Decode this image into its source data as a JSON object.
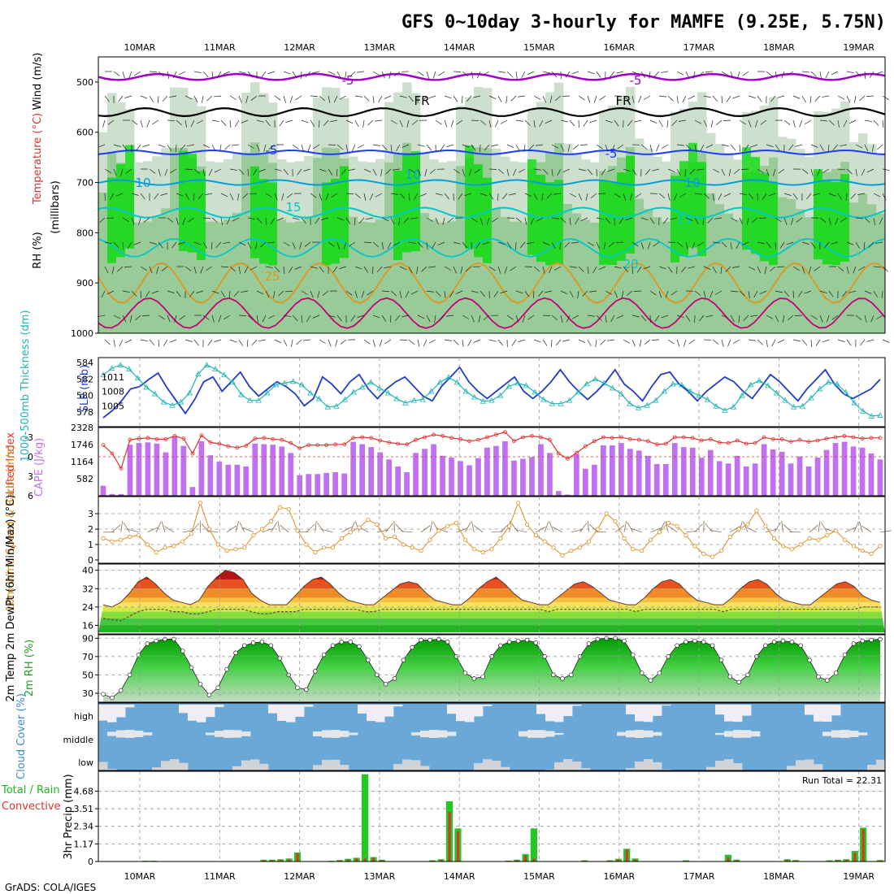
{
  "title": "GFS 0~10day 3-hourly for MAMFE (9.25E, 5.75N)",
  "footer": "GrADS: COLA/IGES",
  "colors": {
    "rh_green": "#00dc00",
    "temp_purple": "#a000c8",
    "temp_blue": "#1e3cff",
    "temp_cyan": "#00a0dc",
    "temp_teal": "#00c8c8",
    "temp_orange": "#e0961e",
    "temp_magenta": "#c8007a",
    "slp_line": "#1e3cc8",
    "thickness_line": "#20b4b4",
    "cape_bar": "#c070f0",
    "lifted_line": "#e03030",
    "wind_line": "#e08c1e",
    "rain_green": "#22c822",
    "conv_red": "#e03030",
    "cloud_blue": "#6aa8d8",
    "cloud_white": "#f0eef4"
  },
  "chart_data": [
    {
      "type": "heatmap",
      "panel": "upper-air cross-section",
      "ylabel_parts": [
        "RH (%)",
        "Temperature (°C)",
        "Wind (m/s)"
      ],
      "ylabel_unit": "(millibars)",
      "x": [
        "10MAR",
        "11MAR",
        "12MAR",
        "13MAR",
        "14MAR",
        "15MAR",
        "16MAR",
        "17MAR",
        "18MAR",
        "19MAR"
      ],
      "y_ticks": [
        500,
        600,
        700,
        800,
        900,
        1000
      ],
      "ylim": [
        1000,
        450
      ],
      "contour_labels": [
        "-5",
        "-5",
        "FR",
        "FR",
        "-5",
        "-5",
        "10",
        "10",
        "10",
        "15",
        "15",
        "20",
        "25"
      ]
    },
    {
      "type": "line",
      "panel": "SLP and thickness",
      "ylabel_left": "1000-500mb Thickness (dm)",
      "ylabel_right": "SLP (mb)",
      "left_ticks": [
        578,
        580,
        582,
        584
      ],
      "right_ticks": [
        1005,
        1008,
        1011
      ],
      "series": [
        {
          "name": "SLP (mb)",
          "axis": "right",
          "values": [
            1002.5,
            1004,
            1006,
            1008.5,
            1009,
            1010.5,
            1011.8,
            1008.7,
            1006,
            1003.4,
            1006.3,
            1010,
            1011,
            1008,
            1010,
            1012,
            1009,
            1007,
            1008.5,
            1010,
            1009,
            1007.5,
            1005,
            1006.5,
            1011,
            1009.5,
            1007.5,
            1010,
            1011.5,
            1008.5,
            1006.5,
            1008.5,
            1010,
            1011,
            1009,
            1007,
            1006,
            1009,
            1011,
            1013,
            1010,
            1008,
            1006.5,
            1008,
            1009.5,
            1011,
            1008,
            1006.5,
            1008,
            1010,
            1012.5,
            1010,
            1008,
            1006.3,
            1008,
            1010,
            1012.5,
            1009.5,
            1008,
            1006,
            1009,
            1011.5,
            1012,
            1009.5,
            1008,
            1006,
            1008,
            1009.5,
            1011,
            1010,
            1008,
            1006.5,
            1009,
            1011.5,
            1010,
            1008,
            1006,
            1008.5,
            1010.5,
            1012.5,
            1009.5,
            1007.5,
            1006.5,
            1007.5,
            1008.5,
            1010.5
          ]
        },
        {
          "name": "Thickness (dm)",
          "axis": "left",
          "values": [
            582.5,
            583.3,
            583.7,
            583.2,
            582.1,
            581.0,
            580.2,
            579.2,
            578.8,
            579.2,
            580.3,
            582.6,
            583.7,
            583.2,
            582.5,
            581.6,
            580.1,
            579.4,
            579.4,
            580.3,
            581.3,
            581.5,
            581.7,
            581.3,
            580.3,
            579.6,
            578.6,
            578.7,
            579.5,
            580.4,
            581.0,
            581.6,
            580.9,
            580.3,
            579.6,
            579.1,
            579.4,
            579.5,
            580.5,
            581.6,
            582.2,
            581.6,
            580.5,
            579.8,
            579.3,
            579.4,
            580.0,
            581.1,
            581.5,
            581.2,
            580.4,
            579.5,
            579.0,
            579.0,
            579.4,
            580.4,
            581.4,
            582.0,
            581.5,
            580.9,
            580.2,
            579.0,
            578.5,
            578.8,
            579.4,
            580.5,
            581.4,
            581.3,
            580.5,
            580.0,
            579.5,
            578.7,
            578.2,
            578.6,
            580.0,
            581.3,
            581.8,
            581.2,
            580.3,
            579.4,
            578.6,
            578.7,
            579.7,
            580.8,
            581.6,
            581.4,
            580.4,
            579.1,
            578.1,
            577.5,
            577.6
          ]
        }
      ]
    },
    {
      "type": "bar",
      "panel": "CAPE and Lifted Index",
      "ylabel_left": "Lifted Index",
      "ylabel_right": "CAPE (J/kg)",
      "lifted_ticks": [
        "-3",
        "0",
        "3",
        "6"
      ],
      "cape_ticks": [
        "582",
        "1164",
        "1746",
        "2328"
      ],
      "series": [
        {
          "name": "CAPE (J/kg)",
          "values": [
            340,
            60,
            60,
            1740,
            1800,
            1820,
            1780,
            1480,
            2000,
            1700,
            300,
            1860,
            1380,
            1160,
            1060,
            1060,
            1000,
            1780,
            1760,
            1740,
            1680,
            1460,
            700,
            740,
            740,
            780,
            800,
            760,
            1840,
            1760,
            1660,
            1480,
            1240,
            1000,
            800,
            1460,
            1600,
            1760,
            1360,
            1300,
            1180,
            1040,
            1280,
            1640,
            1700,
            1860,
            1200,
            1260,
            1320,
            1760,
            1460,
            160,
            40,
            1420,
            920,
            1060,
            1720,
            1720,
            1800,
            1600,
            1540,
            1360,
            1080,
            1080,
            1800,
            1660,
            1640,
            1300,
            1560,
            1180,
            1100,
            1360,
            1000,
            1100,
            1760,
            1580,
            1500,
            1100,
            1340,
            1000,
            1300,
            1560,
            1800,
            1840,
            1680,
            1640,
            1440,
            1240
          ]
        },
        {
          "name": "Lifted Index",
          "values": [
            -1.8,
            -0.5,
            1.8,
            -2.6,
            -2.8,
            -2.9,
            -2.7,
            -2.7,
            -3.2,
            -2.8,
            -0.5,
            -3.3,
            -2.2,
            -2.0,
            -1.6,
            -1.4,
            -1.7,
            -2.8,
            -2.9,
            -2.7,
            -2.6,
            -2.1,
            -1.3,
            -1.8,
            -1.8,
            -1.8,
            -1.9,
            -1.9,
            -2.9,
            -3.0,
            -2.9,
            -2.5,
            -2.2,
            -2.0,
            -1.9,
            -2.6,
            -3.0,
            -3.4,
            -3.2,
            -2.9,
            -2.7,
            -2.4,
            -2.6,
            -3.0,
            -3.4,
            -3.8,
            -2.4,
            -3.0,
            -3.2,
            -3.0,
            -2.6,
            -0.5,
            0.3,
            -0.6,
            -1.6,
            -2.4,
            -3.0,
            -2.9,
            -3.0,
            -2.7,
            -2.6,
            -2.4,
            -1.9,
            -2.0,
            -3.0,
            -3.0,
            -2.9,
            -2.5,
            -2.7,
            -2.2,
            -2.1,
            -2.5,
            -2.0,
            -2.1,
            -3.0,
            -2.7,
            -2.7,
            -2.3,
            -2.6,
            -2.3,
            -2.5,
            -2.8,
            -3.0,
            -3.2,
            -3.0,
            -2.8,
            -2.9,
            -2.9
          ]
        }
      ]
    },
    {
      "type": "line",
      "panel": "10m wind",
      "ylabel": "10m Wind Speed & Barbs (m/s)",
      "y_ticks": [
        "0",
        "1",
        "2",
        "3"
      ],
      "series": [
        {
          "name": "10m Wind Speed (m/s)",
          "values": [
            1.4,
            1.2,
            1.3,
            1.5,
            1.6,
            1.0,
            0.5,
            0.8,
            0.9,
            1.2,
            1.7,
            3.7,
            2.0,
            1.0,
            0.6,
            0.7,
            0.8,
            1.6,
            2.0,
            2.5,
            3.4,
            3.3,
            1.9,
            1.0,
            0.5,
            0.8,
            0.8,
            1.4,
            1.8,
            2.1,
            2.6,
            2.3,
            1.4,
            1.5,
            1.0,
            0.8,
            0.6,
            1.3,
            1.9,
            2.2,
            2.4,
            1.3,
            0.7,
            0.5,
            0.7,
            1.4,
            2.2,
            3.7,
            2.3,
            1.6,
            1.2,
            0.8,
            0.3,
            0.6,
            0.8,
            1.2,
            2.0,
            3.0,
            2.5,
            1.4,
            0.7,
            0.6,
            1.3,
            1.8,
            2.4,
            2.2,
            1.6,
            0.9,
            0.4,
            0.2,
            0.6,
            1.5,
            2.0,
            2.3,
            3.2,
            2.2,
            1.4,
            0.9,
            0.7,
            1.0,
            1.4,
            1.3,
            1.6,
            1.9,
            1.3,
            0.9,
            0.6,
            0.4,
            0.9
          ]
        }
      ]
    },
    {
      "type": "area",
      "panel": "2m temperature",
      "ylabel": "2m Temp 2m DewPt (6hr Min/Max) (°C)",
      "y_ticks": [
        "16",
        "24",
        "32",
        "40"
      ],
      "series": [
        {
          "name": "2m Temp",
          "values": [
            25,
            24,
            26,
            30,
            35,
            37,
            34,
            30,
            27,
            26,
            25,
            27,
            33,
            37,
            40,
            39,
            36,
            30,
            27,
            25,
            25,
            25,
            29,
            33,
            36,
            37,
            34,
            30,
            27,
            26,
            25,
            25,
            28,
            31,
            34,
            35,
            34,
            30,
            27,
            26,
            25,
            25,
            28,
            32,
            35,
            37,
            34,
            30,
            27,
            26,
            25,
            25,
            28,
            31,
            34,
            35,
            33,
            30,
            27,
            26,
            25,
            25,
            28,
            32,
            35,
            36,
            34,
            30,
            27,
            26,
            25,
            25,
            28,
            32,
            35,
            36,
            34,
            30,
            27,
            26,
            25,
            25,
            28,
            31,
            34,
            35,
            33,
            29,
            27,
            26
          ]
        },
        {
          "name": "2m DewPt",
          "values": [
            19,
            18.5,
            18,
            20,
            22,
            23,
            23,
            23,
            22,
            22,
            21,
            21,
            22,
            23,
            23,
            23,
            23,
            22,
            21,
            21,
            22,
            22,
            22,
            23,
            23,
            23,
            23,
            23,
            23,
            23,
            22,
            22,
            23,
            23,
            23,
            23,
            23,
            23,
            23,
            23,
            23,
            23,
            23,
            23,
            23,
            23,
            23,
            23,
            23,
            23,
            23,
            22,
            23,
            23,
            23,
            23,
            23,
            23,
            23,
            23,
            23,
            22,
            23,
            23,
            23,
            23,
            23,
            23,
            23,
            23,
            23,
            22,
            23,
            23,
            23,
            23,
            23,
            23,
            23,
            23,
            23,
            23,
            23,
            23,
            23,
            23,
            23,
            24,
            24,
            24
          ]
        }
      ]
    },
    {
      "type": "area",
      "panel": "2m RH",
      "ylabel": "2m RH (%)",
      "y_ticks": [
        "30",
        "50",
        "70",
        "90"
      ],
      "series": [
        {
          "name": "2m RH (%)",
          "values": [
            29,
            25,
            33,
            50,
            72,
            84,
            87,
            89,
            89,
            76,
            58,
            40,
            28,
            36,
            56,
            74,
            82,
            85,
            86,
            82,
            68,
            50,
            36,
            34,
            54,
            72,
            82,
            86,
            86,
            81,
            66,
            50,
            40,
            46,
            66,
            80,
            88,
            88,
            89,
            86,
            70,
            52,
            46,
            48,
            70,
            82,
            86,
            87,
            88,
            85,
            70,
            50,
            46,
            50,
            70,
            84,
            89,
            90,
            90,
            87,
            72,
            52,
            44,
            52,
            70,
            82,
            86,
            87,
            86,
            82,
            66,
            48,
            42,
            50,
            70,
            82,
            86,
            87,
            86,
            82,
            66,
            48,
            44,
            52,
            72,
            84,
            87,
            88,
            89
          ]
        }
      ]
    },
    {
      "type": "bar",
      "panel": "cloud cover",
      "ylabel": "Cloud Cover (%)",
      "rows": [
        "high",
        "middle",
        "low"
      ]
    },
    {
      "type": "bar",
      "panel": "3hr precipitation",
      "ylabel": "3hr Precip (mm)",
      "legend": [
        "Total / Rain",
        "Convective"
      ],
      "annotation": "Run Total = 22.31",
      "y_ticks": [
        "0",
        "1.17",
        "2.34",
        "3.51",
        "4.68"
      ],
      "series": [
        {
          "name": "Total / Rain",
          "values": [
            0,
            0,
            0,
            0,
            0,
            0.05,
            0.05,
            0,
            0,
            0,
            0,
            0,
            0,
            0,
            0,
            0,
            0,
            0,
            0,
            0.12,
            0.12,
            0.15,
            0.2,
            0.6,
            0,
            0,
            0,
            0.05,
            0.1,
            0.18,
            0.25,
            5.8,
            0.3,
            0.12,
            0,
            0,
            0,
            0,
            0,
            0.08,
            0.15,
            4.0,
            2.2,
            0,
            0,
            0,
            0,
            0,
            0.06,
            0.12,
            0.5,
            2.2,
            0,
            0,
            0,
            0,
            0,
            0.08,
            0,
            0,
            0.08,
            0.18,
            0.85,
            0.2,
            0,
            0,
            0,
            0,
            0,
            0.08,
            0,
            0,
            0,
            0,
            0.45,
            0.12,
            0,
            0,
            0,
            0,
            0,
            0.15,
            0.1,
            0,
            0,
            0,
            0.08,
            0.12,
            0.15,
            0.7,
            2.25,
            0,
            0.1
          ]
        },
        {
          "name": "Convective",
          "values": [
            0,
            0,
            0,
            0,
            0,
            0.04,
            0.04,
            0,
            0,
            0,
            0,
            0,
            0,
            0,
            0,
            0,
            0,
            0,
            0,
            0.1,
            0.1,
            0.12,
            0.15,
            0.55,
            0,
            0,
            0,
            0.04,
            0.08,
            0.15,
            0.2,
            0.2,
            0.25,
            0.1,
            0,
            0,
            0,
            0,
            0,
            0.06,
            0.12,
            3.3,
            2.0,
            0,
            0,
            0,
            0,
            0,
            0.05,
            0.1,
            0.4,
            0.2,
            0,
            0,
            0,
            0,
            0,
            0.06,
            0,
            0,
            0.06,
            0.15,
            0.8,
            0.15,
            0,
            0,
            0,
            0,
            0,
            0.06,
            0,
            0,
            0,
            0,
            0.3,
            0.1,
            0,
            0,
            0,
            0,
            0,
            0.12,
            0.08,
            0,
            0,
            0,
            0.06,
            0.1,
            0.12,
            0.6,
            2.15,
            0,
            0.08
          ]
        }
      ]
    }
  ]
}
